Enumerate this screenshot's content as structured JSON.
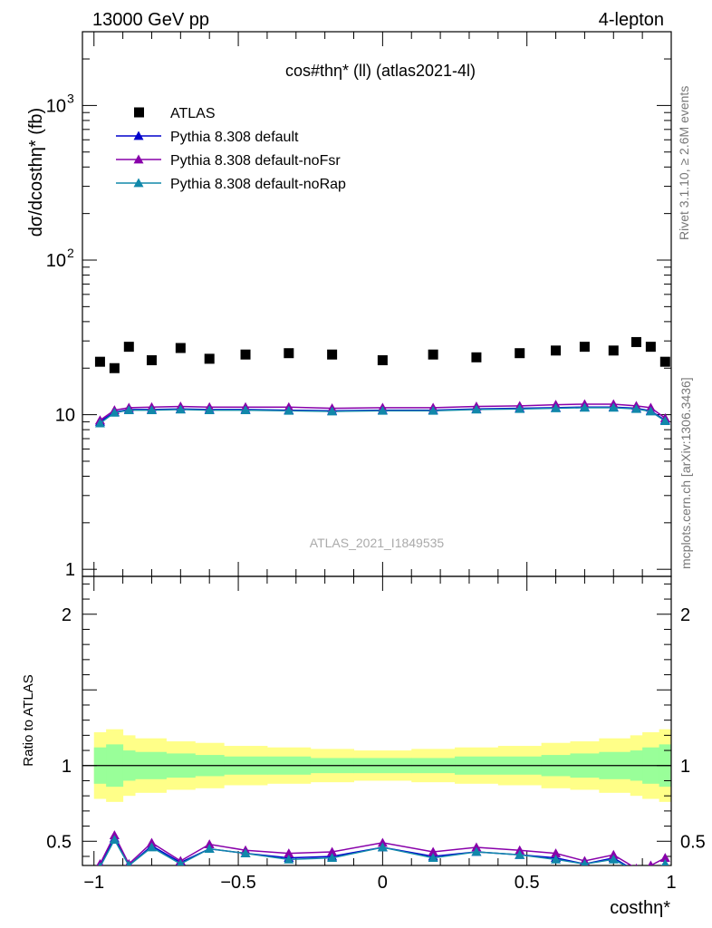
{
  "header": {
    "left": "13000 GeV pp",
    "right": "4-lepton"
  },
  "side_labels": {
    "rivet": "Rivet 3.1.10, ≥ 2.6M events",
    "mcplots": "mcplots.cern.ch [arXiv:1306.3436]"
  },
  "chart_data": [
    {
      "type": "scatter",
      "panel": "main",
      "title": "cos#thη* (ll) (atlas2021-4l)",
      "watermark": "ATLAS_2021_I1849535",
      "ylabel": "dσ/dcosthη* (fb)",
      "xlim": [
        -1.04,
        1.0
      ],
      "ylim": [
        0.9,
        3000
      ],
      "y_scale": "log",
      "y_ticks": [
        {
          "value": 1,
          "label": "1"
        },
        {
          "value": 10,
          "label": "10"
        },
        {
          "value": 100,
          "label": "10",
          "exp": "2"
        },
        {
          "value": 1000,
          "label": "10",
          "exp": "3"
        }
      ],
      "legend_position": "top-left",
      "x": [
        -0.979,
        -0.929,
        -0.879,
        -0.8,
        -0.7,
        -0.6,
        -0.475,
        -0.325,
        -0.175,
        0.0,
        0.175,
        0.325,
        0.475,
        0.6,
        0.7,
        0.8,
        0.879,
        0.929,
        0.979
      ],
      "series": [
        {
          "name": "ATLAS",
          "marker": "square",
          "color": "#000000",
          "values": [
            22.0,
            20.0,
            27.5,
            22.5,
            27.0,
            23.0,
            24.5,
            25.0,
            24.5,
            22.5,
            24.5,
            23.5,
            25.0,
            26.0,
            27.5,
            26.0,
            29.5,
            27.5,
            22.0
          ]
        },
        {
          "name": "Pythia 8.308 default",
          "marker": "triangle",
          "color": "#0000cc",
          "values": [
            9.0,
            10.4,
            10.8,
            10.8,
            10.9,
            10.8,
            10.8,
            10.7,
            10.6,
            10.7,
            10.7,
            10.9,
            11.0,
            11.1,
            11.2,
            11.2,
            11.0,
            10.6,
            9.2
          ]
        },
        {
          "name": "Pythia 8.308 default-noFsr",
          "marker": "triangle",
          "color": "#8800aa",
          "values": [
            9.2,
            10.7,
            11.1,
            11.2,
            11.3,
            11.2,
            11.2,
            11.2,
            11.0,
            11.1,
            11.1,
            11.3,
            11.4,
            11.6,
            11.7,
            11.7,
            11.4,
            11.1,
            9.5
          ]
        },
        {
          "name": "Pythia 8.308 default-noRap",
          "marker": "triangle",
          "color": "#1188aa",
          "values": [
            8.8,
            10.3,
            10.7,
            10.7,
            10.8,
            10.7,
            10.7,
            10.6,
            10.5,
            10.6,
            10.6,
            10.8,
            10.9,
            11.0,
            11.1,
            11.1,
            10.9,
            10.5,
            9.1
          ]
        }
      ]
    },
    {
      "type": "line",
      "panel": "ratio",
      "xlabel": "costhη*",
      "ylabel": "Ratio to ATLAS",
      "xlim": [
        -1.04,
        1.0
      ],
      "ylim": [
        0.34,
        2.25
      ],
      "x_ticks": [
        {
          "value": -1,
          "label": "−1"
        },
        {
          "value": -0.5,
          "label": "−0.5"
        },
        {
          "value": 0,
          "label": "0"
        },
        {
          "value": 0.5,
          "label": "0.5"
        },
        {
          "value": 1,
          "label": "1"
        }
      ],
      "y_ticks": [
        {
          "value": 0.5,
          "label": "0.5"
        },
        {
          "value": 1,
          "label": "1"
        },
        {
          "value": 2,
          "label": "2"
        }
      ],
      "bin_edges": [
        -1.0,
        -0.958,
        -0.9,
        -0.858,
        -0.75,
        -0.65,
        -0.55,
        -0.4,
        -0.25,
        -0.1,
        0.1,
        0.25,
        0.4,
        0.55,
        0.65,
        0.75,
        0.858,
        0.9,
        0.958,
        1.0
      ],
      "uncertainty_bands": [
        {
          "name": "total",
          "color": "#ffff88",
          "lo": [
            0.78,
            0.76,
            0.8,
            0.82,
            0.84,
            0.85,
            0.87,
            0.88,
            0.89,
            0.9,
            0.89,
            0.88,
            0.87,
            0.85,
            0.84,
            0.82,
            0.8,
            0.78,
            0.76
          ],
          "hi": [
            1.22,
            1.24,
            1.2,
            1.18,
            1.16,
            1.15,
            1.13,
            1.12,
            1.11,
            1.1,
            1.11,
            1.12,
            1.13,
            1.15,
            1.16,
            1.18,
            1.2,
            1.22,
            1.24
          ]
        },
        {
          "name": "stat",
          "color": "#99ff99",
          "lo": [
            0.88,
            0.86,
            0.9,
            0.91,
            0.92,
            0.93,
            0.94,
            0.94,
            0.95,
            0.95,
            0.95,
            0.94,
            0.94,
            0.93,
            0.92,
            0.91,
            0.9,
            0.88,
            0.86
          ],
          "hi": [
            1.12,
            1.14,
            1.1,
            1.09,
            1.08,
            1.07,
            1.06,
            1.06,
            1.05,
            1.05,
            1.05,
            1.06,
            1.06,
            1.07,
            1.08,
            1.09,
            1.1,
            1.12,
            1.14
          ]
        }
      ],
      "reference_line": 1,
      "x": [
        -0.979,
        -0.929,
        -0.879,
        -0.8,
        -0.7,
        -0.6,
        -0.475,
        -0.325,
        -0.175,
        0.0,
        0.175,
        0.325,
        0.475,
        0.6,
        0.7,
        0.8,
        0.879,
        0.929,
        0.979
      ],
      "series": [
        {
          "name": "Pythia 8.308 default",
          "color": "#0000cc",
          "values": [
            0.34,
            0.52,
            0.34,
            0.47,
            0.36,
            0.45,
            0.42,
            0.39,
            0.4,
            0.46,
            0.4,
            0.43,
            0.41,
            0.39,
            0.35,
            0.39,
            0.3,
            0.3,
            0.35
          ]
        },
        {
          "name": "Pythia 8.308 default-noFsr",
          "color": "#8800aa",
          "values": [
            0.35,
            0.54,
            0.35,
            0.49,
            0.37,
            0.48,
            0.44,
            0.42,
            0.43,
            0.49,
            0.43,
            0.46,
            0.44,
            0.42,
            0.37,
            0.41,
            0.32,
            0.34,
            0.39
          ]
        },
        {
          "name": "Pythia 8.308 default-noRap",
          "color": "#1188aa",
          "values": [
            0.33,
            0.51,
            0.34,
            0.46,
            0.35,
            0.45,
            0.42,
            0.38,
            0.39,
            0.46,
            0.39,
            0.43,
            0.41,
            0.38,
            0.35,
            0.38,
            0.3,
            0.3,
            0.35
          ]
        }
      ]
    }
  ]
}
